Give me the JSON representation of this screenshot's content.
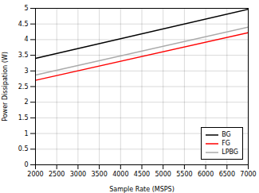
{
  "chart_data": {
    "type": "line",
    "xlabel": "Sample Rate (MSPS)",
    "ylabel": "Power Dissipation (W)",
    "x": [
      2000,
      7000
    ],
    "series": [
      {
        "name": "BG",
        "color": "#000000",
        "values": [
          3.4,
          4.97
        ]
      },
      {
        "name": "FG",
        "color": "#ff0000",
        "values": [
          2.7,
          4.22
        ]
      },
      {
        "name": "LPBG",
        "color": "#aaaaaa",
        "values": [
          2.87,
          4.4
        ]
      }
    ],
    "xlim": [
      2000,
      7000
    ],
    "ylim": [
      0,
      5
    ],
    "xticks": [
      2000,
      2500,
      3000,
      3500,
      4000,
      4500,
      5000,
      5500,
      6000,
      6500,
      7000
    ],
    "yticks": [
      0,
      0.5,
      1,
      1.5,
      2,
      2.5,
      3,
      3.5,
      4,
      4.5,
      5
    ],
    "grid": true,
    "legend": "lower right"
  }
}
